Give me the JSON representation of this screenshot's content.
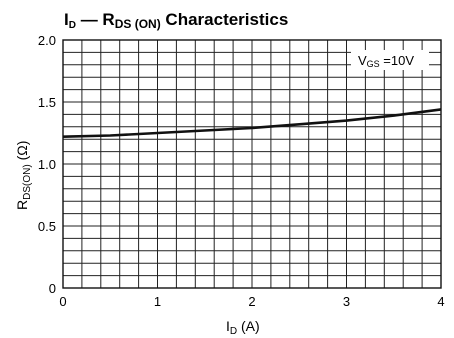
{
  "title": {
    "main_1": "I",
    "sub_1": "D",
    "dash": " — R",
    "sub_2": "DS (ON)",
    "main_2": "   Characteristics"
  },
  "xlabel": {
    "main": "I",
    "sub": "D",
    "unit": " (A)"
  },
  "ylabel": {
    "main": "R",
    "sub": "DS(ON)",
    "unit": "  (Ω)"
  },
  "annotation": {
    "main": "V",
    "sub": "GS",
    "rest": " =10V"
  },
  "chart_data": {
    "type": "line",
    "xlim": [
      0,
      4
    ],
    "ylim": [
      0,
      2.0
    ],
    "x_ticks": [
      "0",
      "1",
      "2",
      "3",
      "4"
    ],
    "y_ticks": [
      "0",
      "0.5",
      "1.0",
      "1.5",
      "2.0"
    ],
    "x_minor_step": 0.2,
    "y_minor_step": 0.1,
    "grid": true,
    "series": [
      {
        "x": [
          0.0,
          0.5,
          1.0,
          1.5,
          2.0,
          2.5,
          3.0,
          3.5,
          4.0
        ],
        "y": [
          1.22,
          1.23,
          1.25,
          1.27,
          1.29,
          1.32,
          1.35,
          1.39,
          1.44
        ],
        "color": "#111111"
      }
    ]
  }
}
